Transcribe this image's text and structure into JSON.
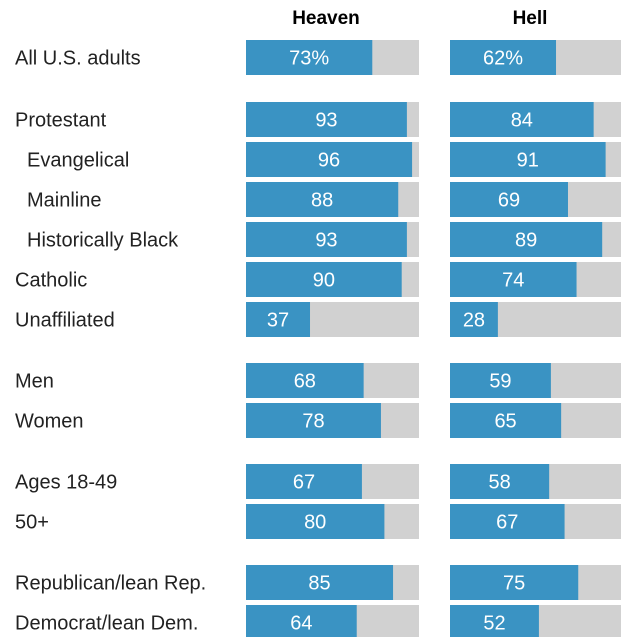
{
  "chart_data": {
    "type": "bar",
    "orientation": "horizontal",
    "stacked_with_remainder": true,
    "xlim": [
      0,
      100
    ],
    "columns": [
      "Heaven",
      "Hell"
    ],
    "categories": [
      "All U.S. adults",
      "Protestant",
      "Evangelical",
      "Mainline",
      "Historically Black",
      "Catholic",
      "Unaffiliated",
      "Men",
      "Women",
      "Ages 18-49",
      "50+",
      "Republican/lean Rep.",
      "Democrat/lean Dem."
    ],
    "series": [
      {
        "name": "Heaven",
        "values": [
          73,
          93,
          96,
          88,
          93,
          90,
          37,
          68,
          78,
          67,
          80,
          85,
          64
        ],
        "labels": [
          "73%",
          "93",
          "96",
          "88",
          "93",
          "90",
          "37",
          "68",
          "78",
          "67",
          "80",
          "85",
          "64"
        ]
      },
      {
        "name": "Hell",
        "values": [
          62,
          84,
          91,
          69,
          89,
          74,
          28,
          59,
          65,
          58,
          67,
          75,
          52
        ],
        "labels": [
          "62%",
          "84",
          "91",
          "69",
          "89",
          "74",
          "28",
          "59",
          "65",
          "58",
          "67",
          "75",
          "52"
        ]
      }
    ],
    "colors": {
      "value": "#3a93c3",
      "remainder": "#d1d1d1"
    },
    "grid": false,
    "legend": "none"
  }
}
